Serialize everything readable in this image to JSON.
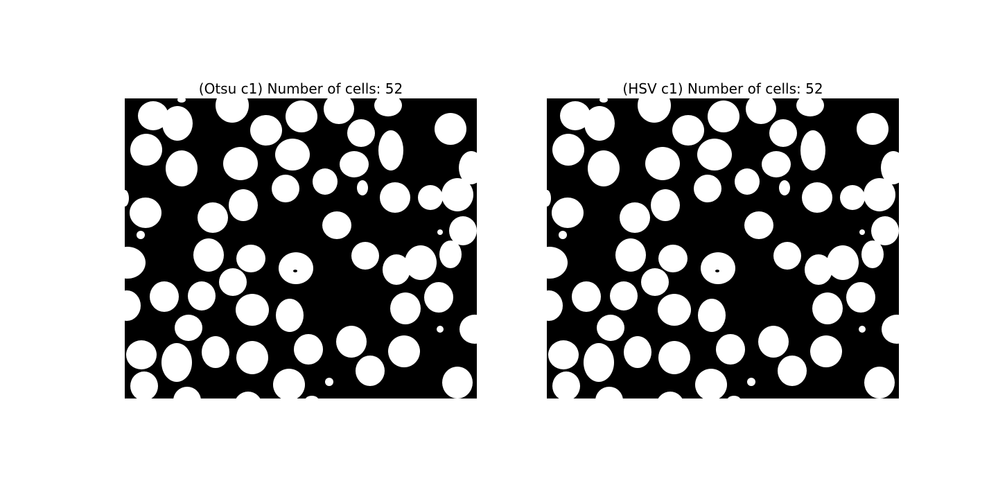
{
  "figure": {
    "panels": [
      {
        "title": "(Otsu c1) Number of cells: 52",
        "image": "binary-segmentation-mask"
      },
      {
        "title": "(HSV c1) Number of cells: 52",
        "image": "binary-segmentation-mask"
      }
    ],
    "colors": {
      "background": "#000000",
      "foreground": "#ffffff",
      "figure": "#ffffff"
    }
  }
}
